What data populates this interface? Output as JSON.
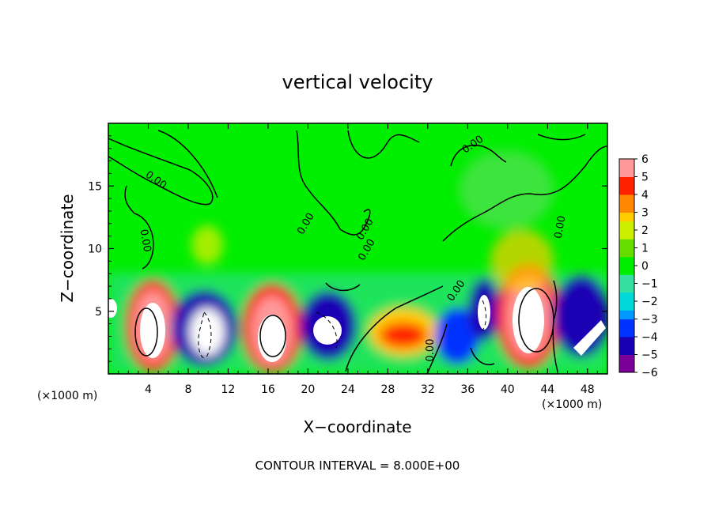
{
  "chart_data": {
    "type": "heatmap",
    "title": "vertical velocity",
    "xlabel": "X−coordinate",
    "ylabel": "Z−coordinate",
    "x_unit_left": "(×1000 m)",
    "x_unit_right": "(×1000 m)",
    "xlim": [
      0,
      50
    ],
    "ylim": [
      0,
      20
    ],
    "x_ticks": [
      4,
      8,
      12,
      16,
      20,
      24,
      28,
      32,
      36,
      40,
      44,
      48
    ],
    "y_ticks": [
      5,
      10,
      15
    ],
    "colorbar_ticks": [
      6,
      5,
      4,
      3,
      2,
      1,
      0,
      -1,
      -2,
      -3,
      -4,
      -5,
      -6
    ],
    "colorbar_tick_labels": [
      "6",
      "5",
      "4",
      "3",
      "2",
      "1",
      "0",
      "−1",
      "−2",
      "−3",
      "−4",
      "−5",
      "−6"
    ],
    "colorbar_range": [
      -6,
      6
    ],
    "contour_interval_text": "CONTOUR INTERVAL = 8.000E+00",
    "contour_labels": [
      "0.00",
      "0.00",
      "0.00",
      "0.00",
      "0.00",
      "0.00",
      "0.00",
      "0.00",
      "0.00"
    ],
    "colormap": [
      "#7a0099",
      "#1a00b3",
      "#0033ff",
      "#0099ff",
      "#00d9d9",
      "#33e0a0",
      "#00ee00",
      "#66dd00",
      "#ccee00",
      "#ffcc00",
      "#ff8800",
      "#ff2200",
      "#ff9999"
    ],
    "features": [
      {
        "x": 4.5,
        "z": 3.5,
        "w": 6
      },
      {
        "x": 9.5,
        "z": 3.5,
        "w": -5
      },
      {
        "x": 16.5,
        "z": 3.6,
        "w": 6
      },
      {
        "x": 22,
        "z": 3.5,
        "w": -5
      },
      {
        "x": 29,
        "z": 3.0,
        "w": 3.5
      },
      {
        "x": 34.5,
        "z": 2.6,
        "w": -4
      },
      {
        "x": 38.5,
        "z": 5.0,
        "w": -4
      },
      {
        "x": 42.5,
        "z": 5.0,
        "w": 6
      },
      {
        "x": 46.5,
        "z": 4.5,
        "w": -5
      },
      {
        "x": 41.5,
        "z": 15.0,
        "w": 0.6
      },
      {
        "x": 10.0,
        "z": 10.0,
        "w": 1.2
      }
    ]
  }
}
